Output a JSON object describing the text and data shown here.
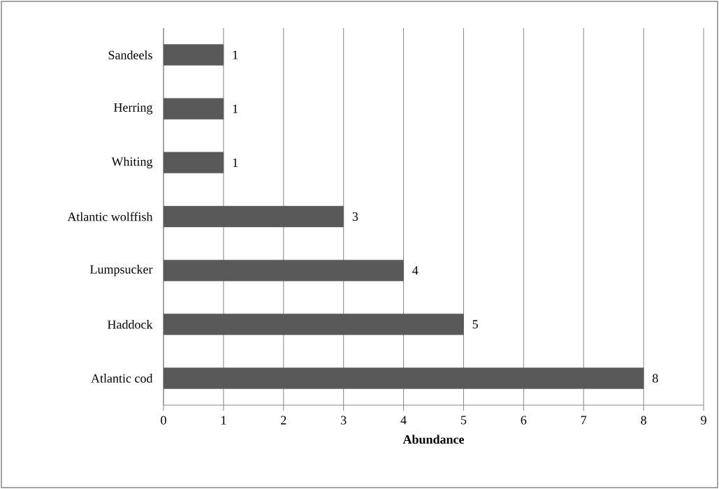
{
  "chart_data": {
    "type": "bar",
    "orientation": "horizontal",
    "xlabel": "Abundance",
    "categories": [
      "Sandeels",
      "Herring",
      "Whiting",
      "Atlantic wolffish",
      "Lumpsucker",
      "Haddock",
      "Atlantic cod"
    ],
    "values": [
      1,
      1,
      1,
      3,
      4,
      5,
      8
    ],
    "color": "#595959",
    "xlim": [
      0,
      9
    ],
    "xticks": [
      0,
      1,
      2,
      3,
      4,
      5,
      6,
      7,
      8,
      9
    ],
    "grid": "x",
    "data_labels": true
  }
}
